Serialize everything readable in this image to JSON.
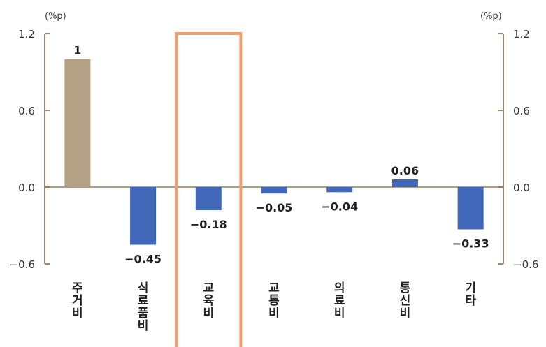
{
  "chart_data": {
    "type": "bar",
    "categories": [
      "주거비",
      "식료품비",
      "교육비",
      "교통비",
      "의료비",
      "통신비",
      "기타"
    ],
    "values": [
      1,
      -0.45,
      -0.18,
      -0.05,
      -0.04,
      0.06,
      -0.33
    ],
    "data_labels": [
      "1",
      "−0.45",
      "−0.18",
      "−0.05",
      "−0.04",
      "0.06",
      "−0.33"
    ],
    "ylim": [
      -0.6,
      1.2
    ],
    "yticks": [
      "1.2",
      "0.6",
      "0.0",
      "−0.6"
    ],
    "ytick_values": [
      1.2,
      0.6,
      0.0,
      -0.6
    ],
    "left_unit": "(%p)",
    "right_unit": "(%p)",
    "grid": false,
    "highlighted_category": "교육비",
    "colors": {
      "default_bar": "#4167b8",
      "first_bar": "#b3a085",
      "axis": "#7a6040",
      "highlight_box": "#f2a06b"
    }
  }
}
